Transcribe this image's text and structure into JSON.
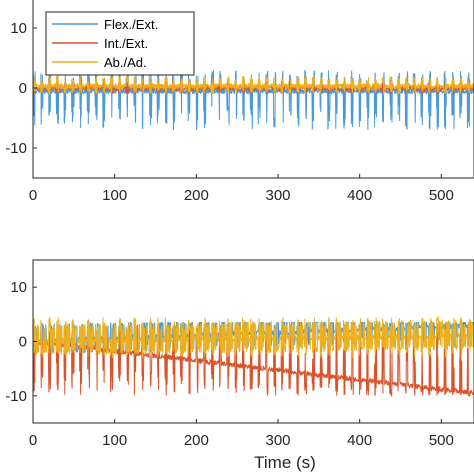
{
  "chart_data": [
    {
      "type": "line",
      "xlabel": "",
      "ylabel": "",
      "xlim": [
        0,
        540
      ],
      "ylim": [
        -15,
        15
      ],
      "xticks": [
        "0",
        "100",
        "200",
        "300",
        "400",
        "500"
      ],
      "yticks": [
        "10",
        "0",
        "-10"
      ],
      "legend_position": "top-left",
      "series": [
        {
          "name": "Flex./Ext.",
          "color": "#4a9ad8",
          "baseline_start": -0.5,
          "baseline_end": -0.5,
          "peak_min": -7,
          "peak_max": 3
        },
        {
          "name": "Int./Ext.",
          "color": "#d9532b",
          "baseline_start": 0.0,
          "baseline_end": 0.0,
          "peak_min": -1,
          "peak_max": 1
        },
        {
          "name": "Ab./Ad.",
          "color": "#edb120",
          "baseline_start": 0.3,
          "baseline_end": 0.3,
          "peak_min": -1,
          "peak_max": 2
        }
      ]
    },
    {
      "type": "line",
      "xlabel": "Time (s)",
      "ylabel": "",
      "xlim": [
        0,
        540
      ],
      "ylim": [
        -15,
        15
      ],
      "xticks": [
        "0",
        "100",
        "200",
        "300",
        "400",
        "500"
      ],
      "yticks": [
        "10",
        "0",
        "-10"
      ],
      "series": [
        {
          "color": "#4a9ad8",
          "baseline_start": 0.0,
          "baseline_end": 3.0,
          "peak_min": -2,
          "peak_max": 3.5
        },
        {
          "color": "#d9532b",
          "baseline_start": 0.0,
          "baseline_end": -9.5,
          "peak_min": -10,
          "peak_max": 2
        },
        {
          "color": "#edb120",
          "baseline_start": 0.0,
          "baseline_end": 1.0,
          "peak_min": -3,
          "peak_max": 4.5
        }
      ]
    }
  ]
}
